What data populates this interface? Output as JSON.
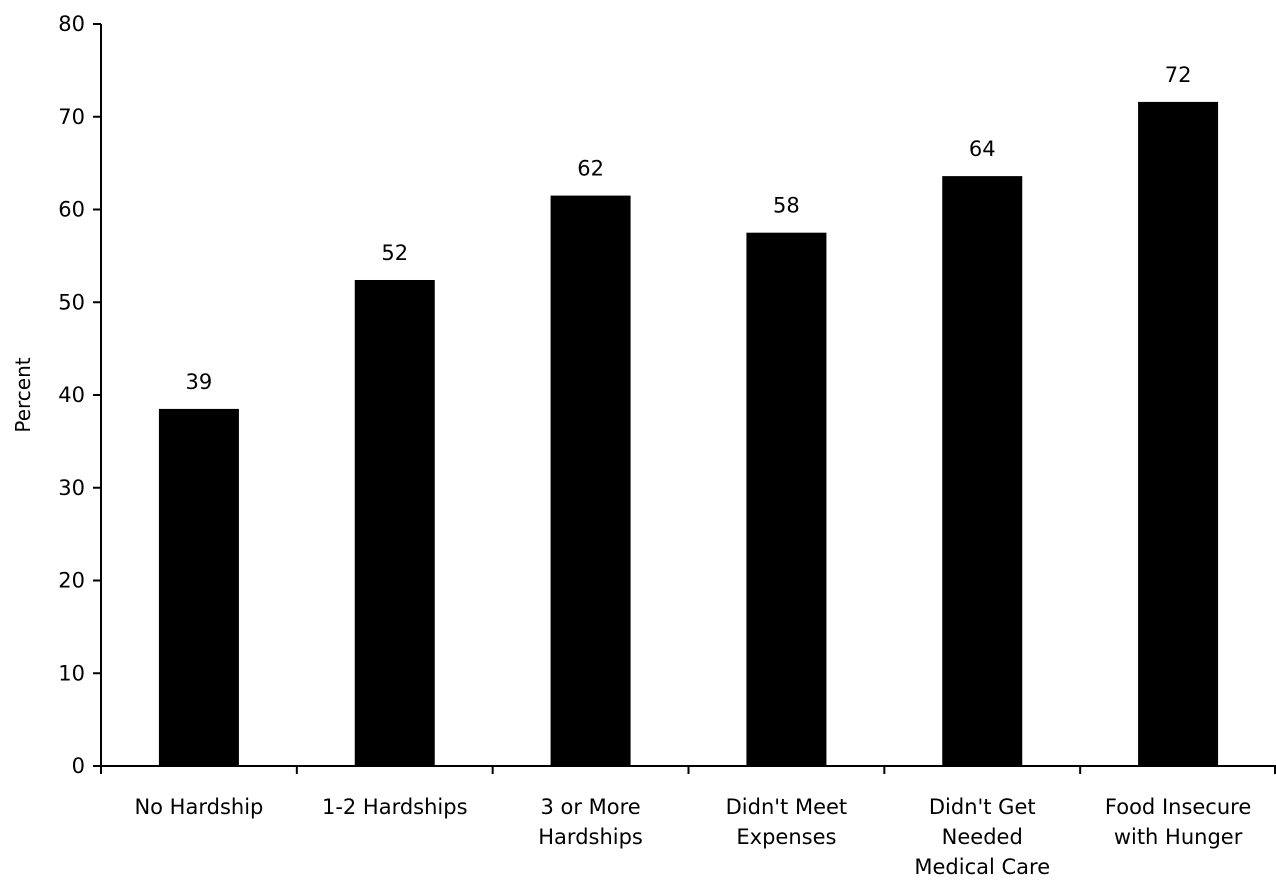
{
  "chart_data": {
    "type": "bar",
    "title": "",
    "xlabel": "",
    "ylabel": "Percent",
    "ylim": [
      0,
      80
    ],
    "yticks": [
      0,
      10,
      20,
      30,
      40,
      50,
      60,
      70,
      80
    ],
    "grid": false,
    "legend": "none",
    "bar_color": "#000000",
    "categories": [
      [
        "No Hardship"
      ],
      [
        "1-2 Hardships"
      ],
      [
        "3 or More",
        "Hardships"
      ],
      [
        "Didn't Meet",
        "Expenses"
      ],
      [
        "Didn't Get",
        "Needed",
        "Medical Care"
      ],
      [
        "Food Insecure",
        "with Hunger"
      ]
    ],
    "values": [
      38.5,
      52.4,
      61.5,
      57.5,
      63.6,
      71.6
    ],
    "data_labels": [
      "39",
      "52",
      "62",
      "58",
      "64",
      "72"
    ]
  }
}
